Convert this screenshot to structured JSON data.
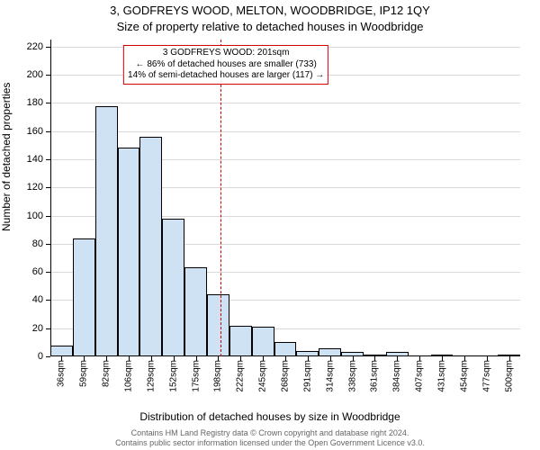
{
  "title": "3, GODFREYS WOOD, MELTON, WOODBRIDGE, IP12 1QY",
  "subtitle": "Size of property relative to detached houses in Woodbridge",
  "y_axis_label": "Number of detached properties",
  "x_axis_label": "Distribution of detached houses by size in Woodbridge",
  "footer_line1": "Contains HM Land Registry data © Crown copyright and database right 2024.",
  "footer_line2": "Contains public sector information licensed under the Open Government Licence v3.0.",
  "annotation": {
    "line1": "3 GODFREYS WOOD: 201sqm",
    "line2": "← 86% of detached houses are smaller (733)",
    "line3": "14% of semi-detached houses are larger (117) →"
  },
  "chart": {
    "type": "histogram",
    "y_min": 0,
    "y_max": 225,
    "y_ticks": [
      0,
      20,
      40,
      60,
      80,
      100,
      120,
      140,
      160,
      180,
      200,
      220
    ],
    "x_ticks": [
      "36sqm",
      "59sqm",
      "82sqm",
      "106sqm",
      "129sqm",
      "152sqm",
      "175sqm",
      "198sqm",
      "222sqm",
      "245sqm",
      "268sqm",
      "291sqm",
      "314sqm",
      "338sqm",
      "361sqm",
      "384sqm",
      "407sqm",
      "431sqm",
      "454sqm",
      "477sqm",
      "500sqm"
    ],
    "bars": [
      8,
      84,
      178,
      148,
      156,
      98,
      63,
      44,
      22,
      21,
      10,
      4,
      6,
      3,
      1,
      3,
      0,
      1,
      0,
      0,
      1
    ],
    "bar_fill_color": "#cfe2f3",
    "bar_border_color": "#000000",
    "reference_value_sqm": 201,
    "x_range_min": 24.5,
    "x_range_max": 511.5,
    "reference_color": "#d40000",
    "background_color": "#ffffff",
    "axis_color": "#000000",
    "tick_font_size": 11
  }
}
